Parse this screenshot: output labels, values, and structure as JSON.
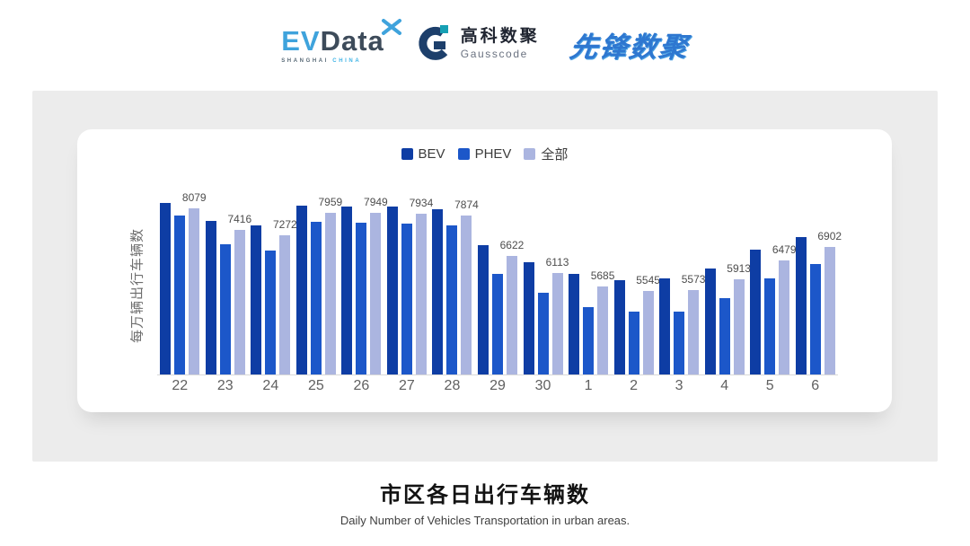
{
  "header": {
    "evdata": {
      "ev": "EV",
      "data": "Data",
      "tagline_left": "SHANGHAI",
      "tagline_right": "CHINA",
      "colors": {
        "blue": "#3fa3dc",
        "slate": "#3d4b5a"
      }
    },
    "gausscode": {
      "cn": "高科数聚",
      "en": "Gausscode",
      "colors": {
        "navy": "#1d3f6b",
        "teal": "#16a0b4"
      }
    },
    "xianfeng": {
      "text": "先锋数聚",
      "color": "#2e77d0"
    }
  },
  "chart_data": {
    "type": "bar",
    "categories": [
      "22",
      "23",
      "24",
      "25",
      "26",
      "27",
      "28",
      "29",
      "30",
      "1",
      "2",
      "3",
      "4",
      "5",
      "6"
    ],
    "series": [
      {
        "name": "BEV",
        "color": "#0e3da4",
        "values": [
          8250,
          7700,
          7570,
          8160,
          8150,
          8130,
          8060,
          6970,
          6450,
          6070,
          5900,
          5930,
          6240,
          6820,
          7220
        ],
        "values_estimated": true
      },
      {
        "name": "PHEV",
        "color": "#1c57c9",
        "values": [
          7880,
          6990,
          6790,
          7670,
          7660,
          7630,
          7570,
          6090,
          5510,
          5050,
          4930,
          4930,
          5340,
          5930,
          6380
        ],
        "values_estimated": true
      },
      {
        "name": "全部",
        "color": "#abb5e0",
        "values": [
          8079,
          7416,
          7272,
          7959,
          7949,
          7934,
          7874,
          6622,
          6113,
          5685,
          5545,
          5573,
          5913,
          6479,
          6902
        ],
        "labeled": true
      }
    ],
    "data_labels": {
      "series": "全部",
      "values": [
        "8079",
        "7416",
        "7272",
        "7959",
        "7949",
        "7934",
        "7874",
        "6622",
        "6113",
        "5685",
        "5545",
        "5573",
        "5913",
        "6479",
        "6902"
      ]
    },
    "title": "",
    "xlabel": "",
    "ylabel": "每万辆出行车辆数",
    "ylim": [
      3000,
      8500
    ],
    "grid": false,
    "legend_position": "top",
    "axis_line_color": "#d9d9d9"
  },
  "footer": {
    "title": "市区各日出行车辆数",
    "subtitle": "Daily Number of Vehicles Transportation in urban areas."
  }
}
